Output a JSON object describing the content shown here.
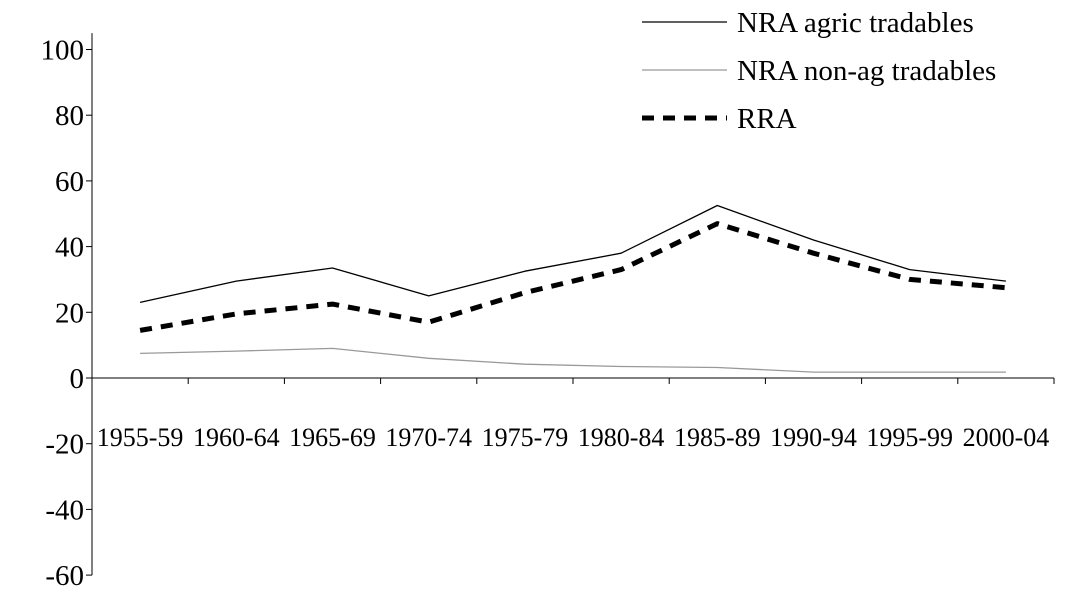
{
  "chart_data": {
    "type": "line",
    "categories": [
      "1955-59",
      "1960-64",
      "1965-69",
      "1970-74",
      "1975-79",
      "1980-84",
      "1985-89",
      "1990-94",
      "1995-99",
      "2000-04"
    ],
    "y_ticks": [
      "100",
      "80",
      "60",
      "40",
      "20",
      "0",
      "-20",
      "-40",
      "-60"
    ],
    "ylim": [
      -60,
      105
    ],
    "grid": false,
    "legend_position": "top-right",
    "series": [
      {
        "name": "NRA agric tradables",
        "values": [
          23,
          29.5,
          33.5,
          25,
          32.5,
          38,
          52.5,
          42,
          33,
          29.5
        ],
        "color": "#000000",
        "style": "solid-thin"
      },
      {
        "name": "NRA non-ag tradables",
        "values": [
          7.5,
          8.2,
          9,
          6,
          4.2,
          3.5,
          3.2,
          1.8,
          1.8,
          1.8
        ],
        "color": "#999999",
        "style": "solid-thin"
      },
      {
        "name": "RRA",
        "values": [
          14.5,
          19.5,
          22.5,
          17,
          26,
          33,
          47,
          38,
          30,
          27.5
        ],
        "color": "#000000",
        "style": "dashed-thick"
      }
    ]
  }
}
